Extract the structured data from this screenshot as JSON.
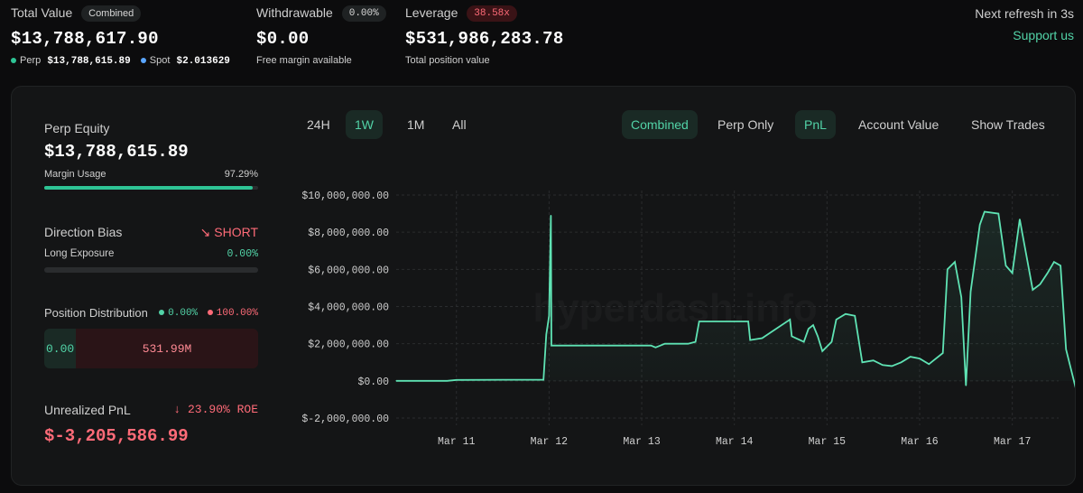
{
  "header": {
    "total_value_label": "Total Value",
    "combined_badge": "Combined",
    "total_value": "$13,788,617.90",
    "perp_label": "Perp",
    "perp_value": "$13,788,615.89",
    "spot_label": "Spot",
    "spot_value": "$2.013629",
    "withdrawable_label": "Withdrawable",
    "withdrawable_badge": "0.00%",
    "withdrawable_value": "$0.00",
    "withdrawable_sub": "Free margin available",
    "leverage_label": "Leverage",
    "leverage_badge": "38.58x",
    "leverage_value": "$531,986,283.78",
    "leverage_sub": "Total position value",
    "refresh_text": "Next refresh in 3s",
    "support_link": "Support us"
  },
  "panel": {
    "perp_equity_label": "Perp Equity",
    "perp_equity_value": "$13,788,615.89",
    "margin_usage_label": "Margin Usage",
    "margin_usage_value": "97.29%",
    "margin_usage_fraction": 0.9729,
    "direction_bias_label": "Direction Bias",
    "direction_bias_value": "SHORT",
    "long_exposure_label": "Long Exposure",
    "long_exposure_value": "0.00%",
    "long_exposure_fraction": 0.0,
    "position_distribution_label": "Position Distribution",
    "long_pct": "0.00%",
    "short_pct": "100.00%",
    "long_amount": "0.00",
    "short_amount": "531.99M",
    "unrealized_pnl_label": "Unrealized PnL",
    "roe_text": "23.90% ROE",
    "unrealized_pnl_value": "$-3,205,586.99"
  },
  "controls": {
    "ranges": [
      "24H",
      "1W",
      "1M",
      "All"
    ],
    "active_range": "1W",
    "modes": [
      "Combined",
      "Perp Only"
    ],
    "active_mode": "Combined",
    "metrics": [
      "PnL",
      "Account Value"
    ],
    "active_metric": "PnL",
    "show_trades": "Show Trades"
  },
  "colors": {
    "accent": "#52d3a7",
    "line": "#5fe3b4",
    "short_red": "#ff6b78",
    "pnl_red": "#ff6b78"
  },
  "watermark": "hyperdash.info",
  "chart_data": {
    "type": "area",
    "x_tick_labels": [
      "Mar 11",
      "Mar 12",
      "Mar 13",
      "Mar 14",
      "Mar 15",
      "Mar 16",
      "Mar 17"
    ],
    "y_tick_labels": [
      "$10,000,000.00",
      "$8,000,000.00",
      "$6,000,000.00",
      "$4,000,000.00",
      "$2,000,000.00",
      "$0.00",
      "$-2,000,000.00"
    ],
    "ylim": [
      -2000000,
      10000000
    ],
    "xlim": [
      10.35,
      17.5
    ],
    "grid": true,
    "series": [
      {
        "points": [
          [
            10.35,
            0
          ],
          [
            10.9,
            0
          ],
          [
            11.0,
            50000
          ],
          [
            11.5,
            60000
          ],
          [
            11.94,
            60000
          ],
          [
            11.97,
            2500000
          ],
          [
            12.0,
            3500000
          ],
          [
            12.02,
            8900000
          ],
          [
            12.025,
            1900000
          ],
          [
            12.5,
            1900000
          ],
          [
            13.0,
            1900000
          ],
          [
            13.1,
            1900000
          ],
          [
            13.15,
            1800000
          ],
          [
            13.25,
            2000000
          ],
          [
            13.5,
            2000000
          ],
          [
            13.58,
            2100000
          ],
          [
            13.62,
            3200000
          ],
          [
            14.0,
            3200000
          ],
          [
            14.15,
            3200000
          ],
          [
            14.17,
            2200000
          ],
          [
            14.3,
            2300000
          ],
          [
            14.42,
            2700000
          ],
          [
            14.6,
            3300000
          ],
          [
            14.62,
            2400000
          ],
          [
            14.75,
            2100000
          ],
          [
            14.8,
            2800000
          ],
          [
            14.85,
            3000000
          ],
          [
            14.9,
            2400000
          ],
          [
            14.95,
            1600000
          ],
          [
            15.05,
            2100000
          ],
          [
            15.1,
            3300000
          ],
          [
            15.2,
            3600000
          ],
          [
            15.3,
            3500000
          ],
          [
            15.38,
            1000000
          ],
          [
            15.5,
            1100000
          ],
          [
            15.6,
            850000
          ],
          [
            15.7,
            800000
          ],
          [
            15.8,
            1000000
          ],
          [
            15.9,
            1300000
          ],
          [
            16.0,
            1200000
          ],
          [
            16.1,
            900000
          ],
          [
            16.15,
            1100000
          ],
          [
            16.25,
            1500000
          ],
          [
            16.3,
            6000000
          ],
          [
            16.38,
            6400000
          ],
          [
            16.45,
            4500000
          ],
          [
            16.5,
            -250000
          ],
          [
            16.55,
            4800000
          ],
          [
            16.65,
            8400000
          ],
          [
            16.7,
            9100000
          ],
          [
            16.85,
            9000000
          ],
          [
            16.93,
            6200000
          ],
          [
            17.0,
            5800000
          ],
          [
            17.08,
            8700000
          ],
          [
            17.15,
            6800000
          ],
          [
            17.22,
            4900000
          ],
          [
            17.3,
            5200000
          ],
          [
            17.38,
            5800000
          ],
          [
            17.45,
            6400000
          ],
          [
            17.52,
            6200000
          ],
          [
            17.58,
            1700000
          ],
          [
            17.65,
            300000
          ],
          [
            17.7,
            -700000
          ]
        ]
      }
    ]
  }
}
